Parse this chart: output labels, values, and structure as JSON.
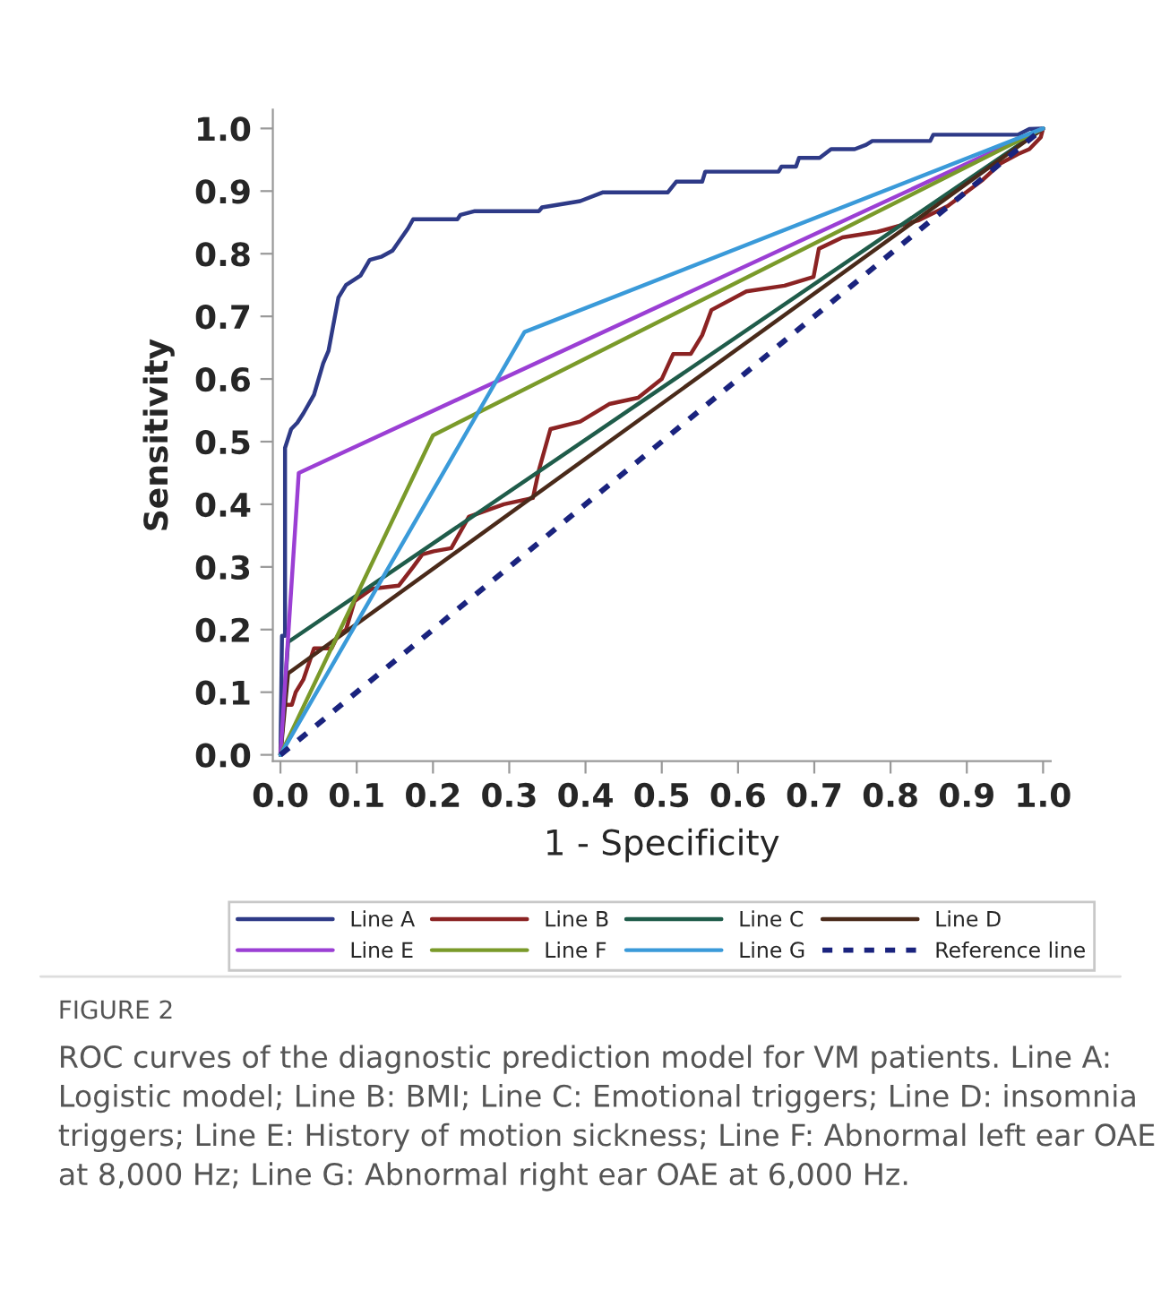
{
  "chart_data": {
    "type": "line",
    "xlabel": "1 - Specificity",
    "ylabel": "Sensitivity",
    "xlim": [
      -0.01,
      1.01
    ],
    "ylim": [
      -0.01,
      1.03
    ],
    "xticks": [
      {
        "value": 0,
        "label": "0.0"
      },
      0.1,
      0.2,
      0.3,
      0.4,
      0.5,
      0.6,
      0.7,
      0.8,
      0.9,
      {
        "value": 1,
        "label": "1.0"
      }
    ],
    "yticks": [
      {
        "value": 0,
        "label": "0.0"
      },
      0.1,
      0.2,
      0.3,
      0.4,
      0.5,
      0.6,
      0.7,
      0.8,
      0.9,
      {
        "value": 1,
        "label": "1.0"
      }
    ],
    "grid": false,
    "legend": "bottom",
    "series": [
      {
        "name": "Line A",
        "color": "#2e3a87",
        "x": [
          0,
          0.002,
          0.006,
          0.006,
          0.014,
          0.022,
          0.03,
          0.044,
          0.056,
          0.063,
          0.076,
          0.086,
          0.105,
          0.117,
          0.132,
          0.147,
          0.167,
          0.174,
          0.232,
          0.236,
          0.255,
          0.339,
          0.343,
          0.393,
          0.423,
          0.508,
          0.519,
          0.553,
          0.557,
          0.653,
          0.657,
          0.676,
          0.68,
          0.707,
          0.722,
          0.753,
          0.768,
          0.776,
          0.852,
          0.856,
          0.967,
          0.982,
          1.0
        ],
        "values": [
          0,
          0.19,
          0.19,
          0.49,
          0.52,
          0.53,
          0.545,
          0.575,
          0.625,
          0.645,
          0.73,
          0.75,
          0.765,
          0.79,
          0.795,
          0.805,
          0.84,
          0.855,
          0.855,
          0.862,
          0.868,
          0.868,
          0.874,
          0.884,
          0.898,
          0.898,
          0.915,
          0.915,
          0.931,
          0.931,
          0.939,
          0.939,
          0.953,
          0.953,
          0.967,
          0.967,
          0.974,
          0.98,
          0.98,
          0.99,
          0.99,
          0.999,
          1.0
        ]
      },
      {
        "name": "Line B",
        "color": "#8b2323",
        "x": [
          0,
          0.005,
          0.015,
          0.02,
          0.03,
          0.044,
          0.067,
          0.075,
          0.086,
          0.097,
          0.12,
          0.155,
          0.174,
          0.186,
          0.201,
          0.224,
          0.247,
          0.293,
          0.331,
          0.339,
          0.354,
          0.393,
          0.431,
          0.469,
          0.5,
          0.515,
          0.538,
          0.553,
          0.565,
          0.611,
          0.661,
          0.699,
          0.706,
          0.737,
          0.783,
          0.836,
          0.875,
          0.921,
          0.944,
          0.967,
          0.982,
          0.997,
          1.0
        ],
        "values": [
          0,
          0.08,
          0.08,
          0.1,
          0.12,
          0.17,
          0.17,
          0.19,
          0.2,
          0.245,
          0.265,
          0.27,
          0.3,
          0.32,
          0.325,
          0.33,
          0.38,
          0.4,
          0.41,
          0.455,
          0.52,
          0.532,
          0.56,
          0.57,
          0.6,
          0.64,
          0.64,
          0.67,
          0.71,
          0.74,
          0.749,
          0.763,
          0.808,
          0.826,
          0.835,
          0.853,
          0.876,
          0.918,
          0.944,
          0.959,
          0.967,
          0.986,
          1.0
        ]
      },
      {
        "name": "Line C",
        "color": "#1f5c4a",
        "x": [
          0,
          0.01,
          1.0
        ],
        "values": [
          0,
          0.18,
          1.0
        ]
      },
      {
        "name": "Line D",
        "color": "#4a2a1a",
        "x": [
          0,
          0.01,
          1.0
        ],
        "values": [
          0,
          0.13,
          1.0
        ]
      },
      {
        "name": "Line E",
        "color": "#9b3fd4",
        "x": [
          0,
          0.024,
          1.0
        ],
        "values": [
          0,
          0.45,
          1.0
        ]
      },
      {
        "name": "Line F",
        "color": "#7a9a2a",
        "x": [
          0,
          0.2,
          1.0
        ],
        "values": [
          0,
          0.51,
          1.0
        ]
      },
      {
        "name": "Line G",
        "color": "#3a9ad9",
        "x": [
          0,
          0.32,
          1.0
        ],
        "values": [
          0,
          0.675,
          1.0
        ]
      },
      {
        "name": "Reference line",
        "color": "#1a237e",
        "line_style": "dotted",
        "x": [
          0,
          1.0
        ],
        "values": [
          0,
          1.0
        ]
      }
    ],
    "annotations": [
      "FIGURE 2",
      "ROC curves of the diagnostic prediction model for VM patients. Line A: Logistic model; Line B: BMI; Line C: Emotional triggers; Line D: insomnia triggers; Line E: History of motion sickness; Line F: Abnormal left ear OAE at 8,000 Hz; Line G: Abnormal right ear OAE at 6,000 Hz."
    ]
  }
}
